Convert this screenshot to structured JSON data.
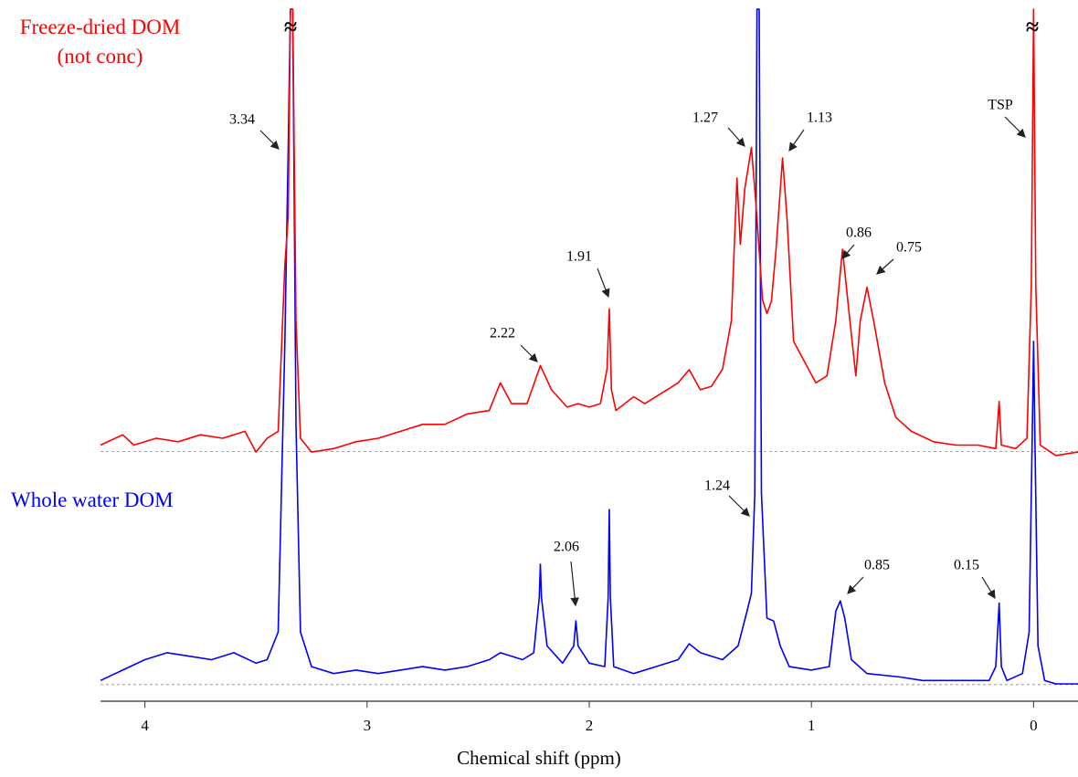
{
  "chart_data": {
    "type": "line",
    "xlabel": "Chemical shift (ppm)",
    "xlim": [
      4.2,
      -0.2
    ],
    "xticks": [
      4,
      3,
      2,
      1,
      0
    ],
    "ylim": [
      0,
      100
    ],
    "axis_break_symbol": "≈",
    "series": [
      {
        "name": "Freeze-dried DOM (not conc)",
        "color": "#ff0000",
        "baseline": 36.1,
        "x": [
          4.2,
          4.1,
          4.05,
          3.95,
          3.85,
          3.75,
          3.65,
          3.55,
          3.5,
          3.45,
          3.4,
          3.37,
          3.355,
          3.345,
          3.335,
          3.32,
          3.3,
          3.25,
          3.15,
          3.05,
          2.95,
          2.85,
          2.75,
          2.65,
          2.55,
          2.45,
          2.4,
          2.35,
          2.28,
          2.22,
          2.17,
          2.1,
          2.05,
          2.0,
          1.95,
          1.92,
          1.91,
          1.9,
          1.88,
          1.8,
          1.75,
          1.65,
          1.6,
          1.55,
          1.5,
          1.45,
          1.4,
          1.36,
          1.335,
          1.32,
          1.3,
          1.27,
          1.25,
          1.22,
          1.2,
          1.18,
          1.16,
          1.13,
          1.11,
          1.08,
          1.03,
          0.98,
          0.93,
          0.89,
          0.86,
          0.83,
          0.8,
          0.78,
          0.75,
          0.72,
          0.67,
          0.62,
          0.55,
          0.45,
          0.35,
          0.25,
          0.17,
          0.155,
          0.145,
          0.08,
          0.03,
          0.01,
          0.0,
          -0.01,
          -0.03,
          -0.1,
          -0.2
        ],
        "values": [
          37,
          38.5,
          37,
          38,
          37.5,
          38.5,
          38,
          39,
          36,
          38,
          39,
          63,
          70,
          100,
          100,
          55,
          38,
          36,
          36.5,
          37.5,
          38,
          39,
          40,
          40,
          41.5,
          42,
          46,
          43,
          43,
          48.5,
          45,
          42.5,
          43,
          42.5,
          43,
          48,
          56.7,
          45,
          42,
          44,
          43,
          45,
          46,
          47.9,
          45,
          45.5,
          48,
          55,
          75.6,
          66,
          74,
          80,
          72,
          58,
          56,
          57.8,
          65,
          78.5,
          70,
          52,
          49,
          46,
          47,
          55,
          65.3,
          56,
          47,
          55,
          59.8,
          55,
          46,
          41,
          39,
          37.5,
          37,
          37,
          36.5,
          43.3,
          37,
          36.5,
          38,
          60,
          100,
          60,
          37,
          35.5,
          36
        ]
      },
      {
        "name": "Whole water DOM",
        "color": "#0000ff",
        "baseline": 2.4,
        "x": [
          4.2,
          4.1,
          4.0,
          3.9,
          3.8,
          3.7,
          3.6,
          3.5,
          3.45,
          3.4,
          3.37,
          3.355,
          3.345,
          3.335,
          3.32,
          3.3,
          3.25,
          3.15,
          3.05,
          2.95,
          2.85,
          2.75,
          2.65,
          2.55,
          2.45,
          2.4,
          2.3,
          2.25,
          2.225,
          2.22,
          2.215,
          2.19,
          2.12,
          2.07,
          2.06,
          2.05,
          2.0,
          1.93,
          1.915,
          1.91,
          1.905,
          1.89,
          1.8,
          1.7,
          1.6,
          1.55,
          1.5,
          1.4,
          1.33,
          1.29,
          1.27,
          1.255,
          1.245,
          1.235,
          1.225,
          1.2,
          1.17,
          1.14,
          1.1,
          1.0,
          0.92,
          0.89,
          0.87,
          0.85,
          0.82,
          0.75,
          0.6,
          0.5,
          0.3,
          0.2,
          0.17,
          0.155,
          0.145,
          0.12,
          0.05,
          0.02,
          0.005,
          0.0,
          -0.005,
          -0.02,
          -0.05,
          -0.1,
          -0.2
        ],
        "values": [
          3,
          4.5,
          6,
          7,
          6.5,
          6,
          7,
          5.5,
          6,
          10,
          51.8,
          80,
          100,
          100,
          40,
          10,
          5,
          4,
          4.5,
          4,
          4.5,
          5,
          4.5,
          5,
          6,
          7,
          6,
          7,
          15,
          19.8,
          15,
          8,
          5.5,
          8,
          11.6,
          8,
          5.5,
          5,
          15,
          27.7,
          15,
          5,
          4,
          5,
          6,
          8.3,
          7,
          6,
          8,
          13,
          15.6,
          30,
          100,
          100,
          30,
          12,
          11.6,
          8,
          5,
          4.5,
          5,
          13,
          14.5,
          12,
          6,
          4,
          3.5,
          3,
          3,
          3,
          5,
          14.2,
          5,
          3,
          4,
          10,
          40,
          52,
          40,
          8,
          3,
          2.5,
          2.5
        ]
      }
    ],
    "annotations": [
      {
        "text": "3.34"
      },
      {
        "text": "2.22"
      },
      {
        "text": "1.91"
      },
      {
        "text": "1.27"
      },
      {
        "text": "1.13"
      },
      {
        "text": "0.86"
      },
      {
        "text": "0.75"
      },
      {
        "text": "TSP"
      },
      {
        "text": "2.06"
      },
      {
        "text": "1.24"
      },
      {
        "text": "0.85"
      },
      {
        "text": "0.15"
      }
    ]
  }
}
